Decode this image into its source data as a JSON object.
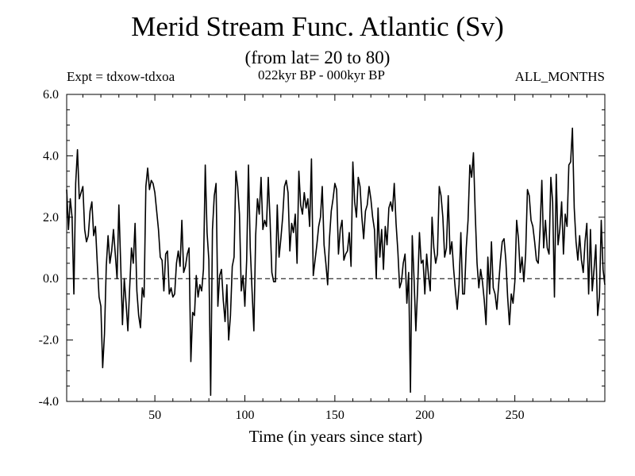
{
  "chart_data": {
    "type": "line",
    "title": "Merid Stream Func. Atlantic (Sv)",
    "subtitle": "(from lat= 20 to 80)",
    "annotations": {
      "left": "Expt = tdxow-tdxoa",
      "center": "022kyr BP - 000kyr BP",
      "right": "ALL_MONTHS"
    },
    "xlabel": "Time (in years since start)",
    "ylabel": "",
    "xlim": [
      1,
      300
    ],
    "ylim": [
      -4.0,
      6.0
    ],
    "xticks": [
      50,
      100,
      150,
      200,
      250
    ],
    "xtick_labels": [
      "50",
      "100",
      "150",
      "200",
      "250"
    ],
    "yticks": [
      -4.0,
      -2.0,
      0.0,
      2.0,
      4.0,
      6.0
    ],
    "ytick_labels": [
      "-4.0",
      "-2.0",
      "0.0",
      "2.0",
      "4.0",
      "6.0"
    ],
    "reference_line": {
      "y": 0.0,
      "style": "dashed"
    },
    "series": [
      {
        "x_start": 1,
        "x_step": 1,
        "values": [
          2.9,
          1.6,
          2.6,
          2.0,
          -0.5,
          3.1,
          4.2,
          2.6,
          2.8,
          3.0,
          1.6,
          1.2,
          1.4,
          2.2,
          2.5,
          1.4,
          1.7,
          0.5,
          -0.6,
          -0.9,
          -2.9,
          -1.8,
          0.4,
          1.4,
          0.5,
          0.9,
          1.6,
          0.8,
          0.0,
          2.4,
          0.5,
          -1.5,
          0.0,
          -0.8,
          -1.7,
          -0.3,
          1.0,
          0.5,
          1.8,
          -0.4,
          -1.2,
          -1.6,
          -0.3,
          -0.6,
          3.0,
          3.6,
          2.9,
          3.2,
          3.1,
          2.8,
          2.2,
          1.6,
          0.7,
          0.6,
          -0.4,
          0.8,
          0.9,
          -0.5,
          -0.3,
          -0.6,
          -0.5,
          0.5,
          0.9,
          0.4,
          1.9,
          0.2,
          0.4,
          0.8,
          1.0,
          -2.7,
          -1.1,
          -1.2,
          0.1,
          -0.6,
          -0.2,
          -0.4,
          0.3,
          3.7,
          1.5,
          0.6,
          -3.8,
          1.6,
          2.7,
          3.1,
          -0.9,
          0.1,
          0.3,
          -0.7,
          -1.4,
          -0.2,
          -2.0,
          -1.2,
          0.4,
          0.7,
          3.5,
          3.0,
          2.1,
          -0.4,
          0.1,
          -0.9,
          0.6,
          3.7,
          1.0,
          -0.4,
          -1.7,
          1.4,
          2.6,
          2.1,
          3.3,
          1.6,
          1.9,
          1.7,
          3.3,
          1.9,
          0.2,
          -0.1,
          -0.1,
          2.4,
          0.7,
          1.3,
          2.0,
          3.0,
          3.2,
          2.8,
          0.9,
          1.8,
          1.5,
          2.1,
          0.5,
          3.5,
          2.4,
          2.1,
          2.8,
          2.3,
          2.6,
          1.7,
          3.9,
          0.1,
          0.6,
          1.1,
          1.7,
          2.0,
          3.0,
          1.1,
          0.5,
          -0.2,
          1.3,
          2.2,
          2.6,
          3.1,
          2.9,
          0.8,
          1.6,
          1.9,
          0.6,
          0.8,
          0.9,
          1.5,
          0.4,
          3.8,
          2.5,
          2.0,
          3.3,
          3.0,
          2.0,
          1.3,
          2.2,
          2.4,
          3.0,
          2.6,
          2.0,
          1.6,
          0.0,
          2.3,
          0.7,
          1.6,
          0.3,
          1.7,
          1.1,
          2.3,
          2.5,
          2.2,
          3.1,
          1.8,
          0.9,
          -0.3,
          -0.1,
          0.5,
          0.8,
          -0.8,
          0.2,
          -3.7,
          1.4,
          0.0,
          -1.7,
          -0.3,
          1.5,
          0.5,
          0.6,
          -0.5,
          0.8,
          0.1,
          -0.4,
          2.0,
          1.0,
          0.5,
          0.8,
          3.0,
          2.7,
          2.0,
          0.7,
          1.0,
          2.7,
          0.8,
          1.2,
          0.3,
          -0.4,
          -1.0,
          -0.2,
          1.5,
          -0.5,
          -0.5,
          1.0,
          1.9,
          3.7,
          3.3,
          4.1,
          2.1,
          0.5,
          -0.3,
          0.3,
          -0.1,
          -0.7,
          -1.5,
          0.7,
          -0.5,
          1.2,
          -0.3,
          -0.5,
          -1.0,
          -0.2,
          0.6,
          1.2,
          1.3,
          0.6,
          -0.6,
          -1.5,
          -0.5,
          -0.8,
          -0.1,
          1.9,
          1.3,
          0.2,
          0.7,
          -0.1,
          0.8,
          2.9,
          2.7,
          1.9,
          1.7,
          1.2,
          0.6,
          0.5,
          1.6,
          3.2,
          1.0,
          1.9,
          1.0,
          0.8,
          3.3,
          2.5,
          -0.6,
          3.4,
          1.1,
          1.6,
          2.5,
          0.8,
          2.1,
          1.7,
          3.7,
          3.8,
          4.9,
          2.3,
          1.2,
          0.6,
          1.4,
          0.6,
          0.2,
          1.2,
          1.8,
          -0.5,
          1.6,
          -0.4,
          0.3,
          1.1,
          -1.2,
          -0.6,
          1.9,
          0.3,
          -0.2
        ]
      }
    ]
  }
}
